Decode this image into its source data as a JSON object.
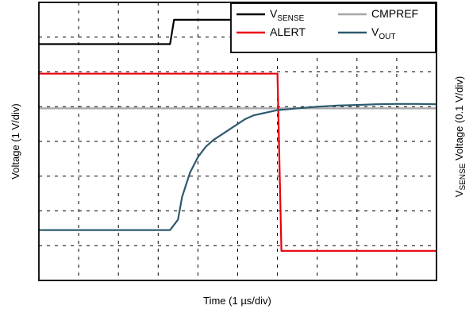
{
  "chart_data": {
    "type": "line",
    "title": "",
    "xlabel": "Time (1 µs/div)",
    "ylabel_left": "Voltage (1 V/div)",
    "ylabel_right": {
      "main": "V",
      "sub": "SENSE",
      "rest": " Voltage (0.1 V/div)"
    },
    "x_unit": "div",
    "y_unit": "div",
    "xlim": [
      0,
      10
    ],
    "ylim": [
      0,
      8
    ],
    "x_divisions": 10,
    "y_divisions": 8,
    "grid": true,
    "grid_style": "dashed",
    "legend_position": "top-right",
    "series": [
      {
        "name": "V",
        "name_sub": "SENSE",
        "color": "#000000",
        "x": [
          0,
          3.3,
          3.4,
          10
        ],
        "y": [
          6.8,
          6.8,
          7.5,
          7.5
        ]
      },
      {
        "name": "CMPREF",
        "name_sub": "",
        "color": "#a6a6a6",
        "x": [
          0,
          10
        ],
        "y": [
          4.95,
          4.95
        ]
      },
      {
        "name": "ALERT",
        "name_sub": "",
        "color": "#e8000b",
        "x": [
          0,
          6.0,
          6.1,
          10
        ],
        "y": [
          5.95,
          5.95,
          0.85,
          0.85
        ]
      },
      {
        "name": "V",
        "name_sub": "OUT",
        "color": "#2e5a6e",
        "x": [
          0,
          3.3,
          3.5,
          3.6,
          3.8,
          4.0,
          4.2,
          4.4,
          4.6,
          4.8,
          5.0,
          5.2,
          5.4,
          5.6,
          5.8,
          6.0,
          6.2,
          6.5,
          7.0,
          7.5,
          8.0,
          8.5,
          9.0,
          9.5,
          10
        ],
        "y": [
          1.45,
          1.45,
          1.75,
          2.4,
          3.1,
          3.55,
          3.85,
          4.05,
          4.2,
          4.35,
          4.5,
          4.65,
          4.75,
          4.8,
          4.85,
          4.9,
          4.92,
          4.95,
          5.0,
          5.03,
          5.05,
          5.07,
          5.08,
          5.08,
          5.07
        ]
      }
    ]
  }
}
